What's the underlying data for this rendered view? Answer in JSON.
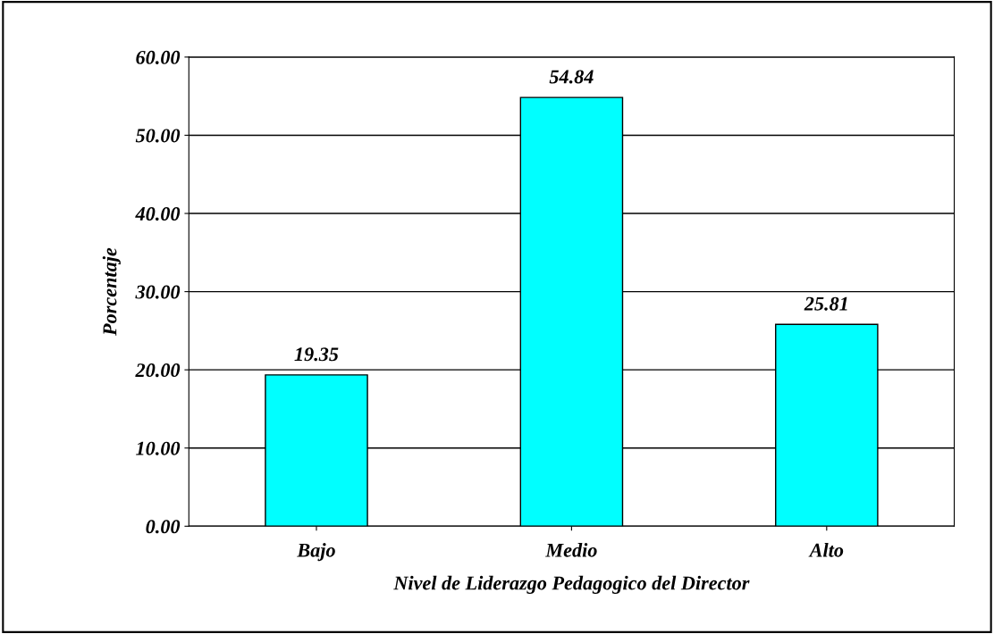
{
  "chart_data": {
    "type": "bar",
    "xlabel": "Nivel de Liderazgo Pedagogico del Director",
    "ylabel": "Porcentaje",
    "categories": [
      "Bajo",
      "Medio",
      "Alto"
    ],
    "values": [
      19.35,
      54.84,
      25.81
    ],
    "color": "#00ffff",
    "ylim": [
      0,
      60
    ],
    "yticks": [
      {
        "value": 0,
        "label": "0.00"
      },
      {
        "value": 10,
        "label": "10.00"
      },
      {
        "value": 20,
        "label": "20.00"
      },
      {
        "value": 30,
        "label": "30.00"
      },
      {
        "value": 40,
        "label": "40.00"
      },
      {
        "value": 50,
        "label": "50.00"
      },
      {
        "value": 60,
        "label": "60.00"
      }
    ],
    "grid": "y",
    "data_labels": true
  }
}
